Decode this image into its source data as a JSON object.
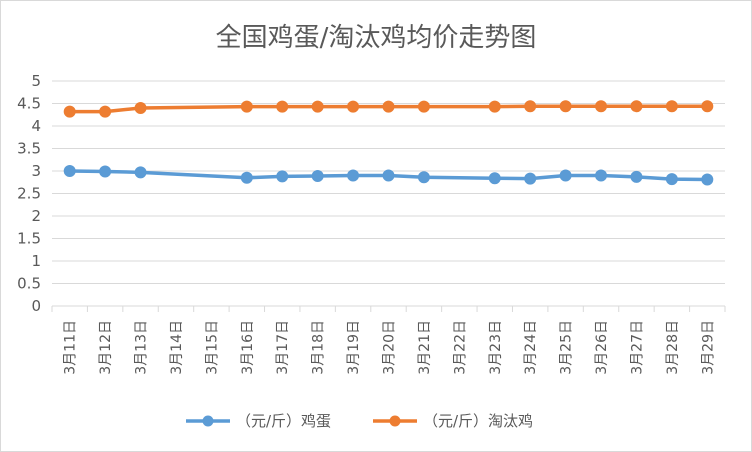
{
  "chart_data": {
    "type": "line",
    "title": "全国鸡蛋/淘汰鸡均价走势图",
    "categories": [
      "3月11日",
      "3月12日",
      "3月13日",
      "3月14日",
      "3月15日",
      "3月16日",
      "3月17日",
      "3月18日",
      "3月19日",
      "3月20日",
      "3月21日",
      "3月22日",
      "3月23日",
      "3月24日",
      "3月25日",
      "3月26日",
      "3月27日",
      "3月28日",
      "3月29日"
    ],
    "yticks": [
      "0",
      "0.5",
      "1",
      "1.5",
      "2",
      "2.5",
      "3",
      "3.5",
      "4",
      "4.5",
      "5"
    ],
    "ylim": [
      0,
      5
    ],
    "grid": true,
    "legend_position": "bottom",
    "series": [
      {
        "name": "（元/斤）鸡蛋",
        "color": "#5b9bd5",
        "values": [
          3.0,
          2.99,
          2.97,
          null,
          null,
          2.85,
          2.88,
          2.89,
          2.9,
          2.9,
          2.86,
          null,
          2.84,
          2.83,
          2.9,
          2.9,
          2.87,
          2.82,
          2.81
        ]
      },
      {
        "name": "（元/斤）淘汰鸡",
        "color": "#ed7d31",
        "values": [
          4.32,
          4.32,
          4.4,
          null,
          null,
          4.43,
          4.43,
          4.43,
          4.43,
          4.43,
          4.43,
          null,
          4.43,
          4.44,
          4.44,
          4.44,
          4.44,
          4.44,
          4.44
        ]
      }
    ]
  }
}
